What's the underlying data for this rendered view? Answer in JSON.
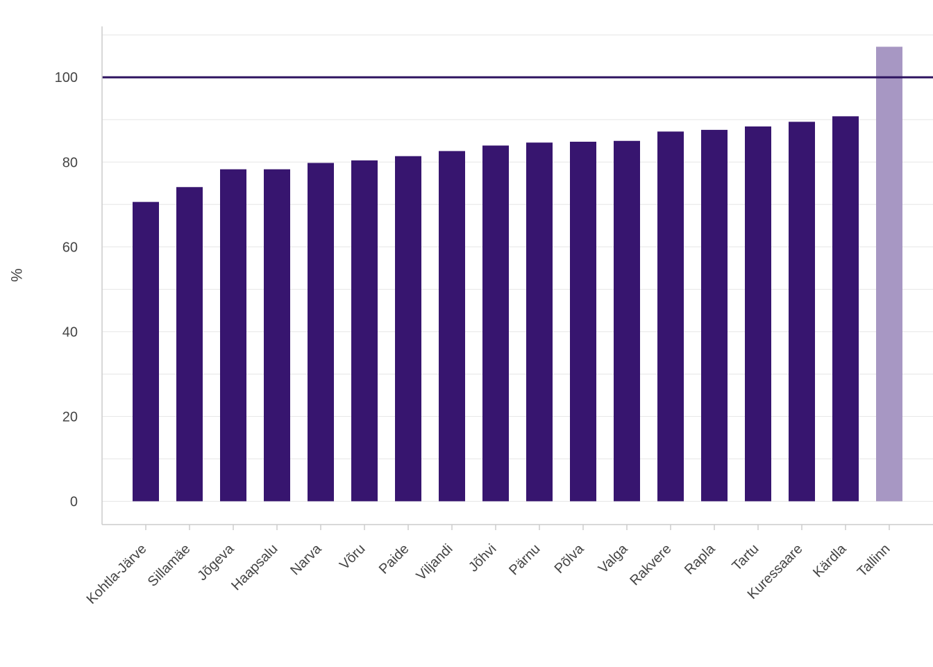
{
  "chart_data": {
    "type": "bar",
    "title": "",
    "xlabel": "",
    "ylabel": "%",
    "ylim": [
      -5.5,
      112
    ],
    "yticks": [
      0,
      20,
      40,
      60,
      80,
      100
    ],
    "reference_line": {
      "value": 100,
      "color": "#2e1460"
    },
    "grid": true,
    "categories": [
      "Kohtla-Järve",
      "Sillamäe",
      "Jõgeva",
      "Haapsalu",
      "Narva",
      "Võru",
      "Paide",
      "Viljandi",
      "Jõhvi",
      "Pärnu",
      "Põlva",
      "Valga",
      "Rakvere",
      "Rapla",
      "Tartu",
      "Kuressaare",
      "Kärdla",
      "Tallinn"
    ],
    "values": [
      70.6,
      74.1,
      78.3,
      78.3,
      79.8,
      80.4,
      81.4,
      82.6,
      83.9,
      84.6,
      84.8,
      85.0,
      87.2,
      87.6,
      88.4,
      89.5,
      90.8,
      107.2
    ],
    "colors": {
      "default": "#37156f",
      "highlight": "#a797c3",
      "highlight_category": "Tallinn"
    }
  }
}
